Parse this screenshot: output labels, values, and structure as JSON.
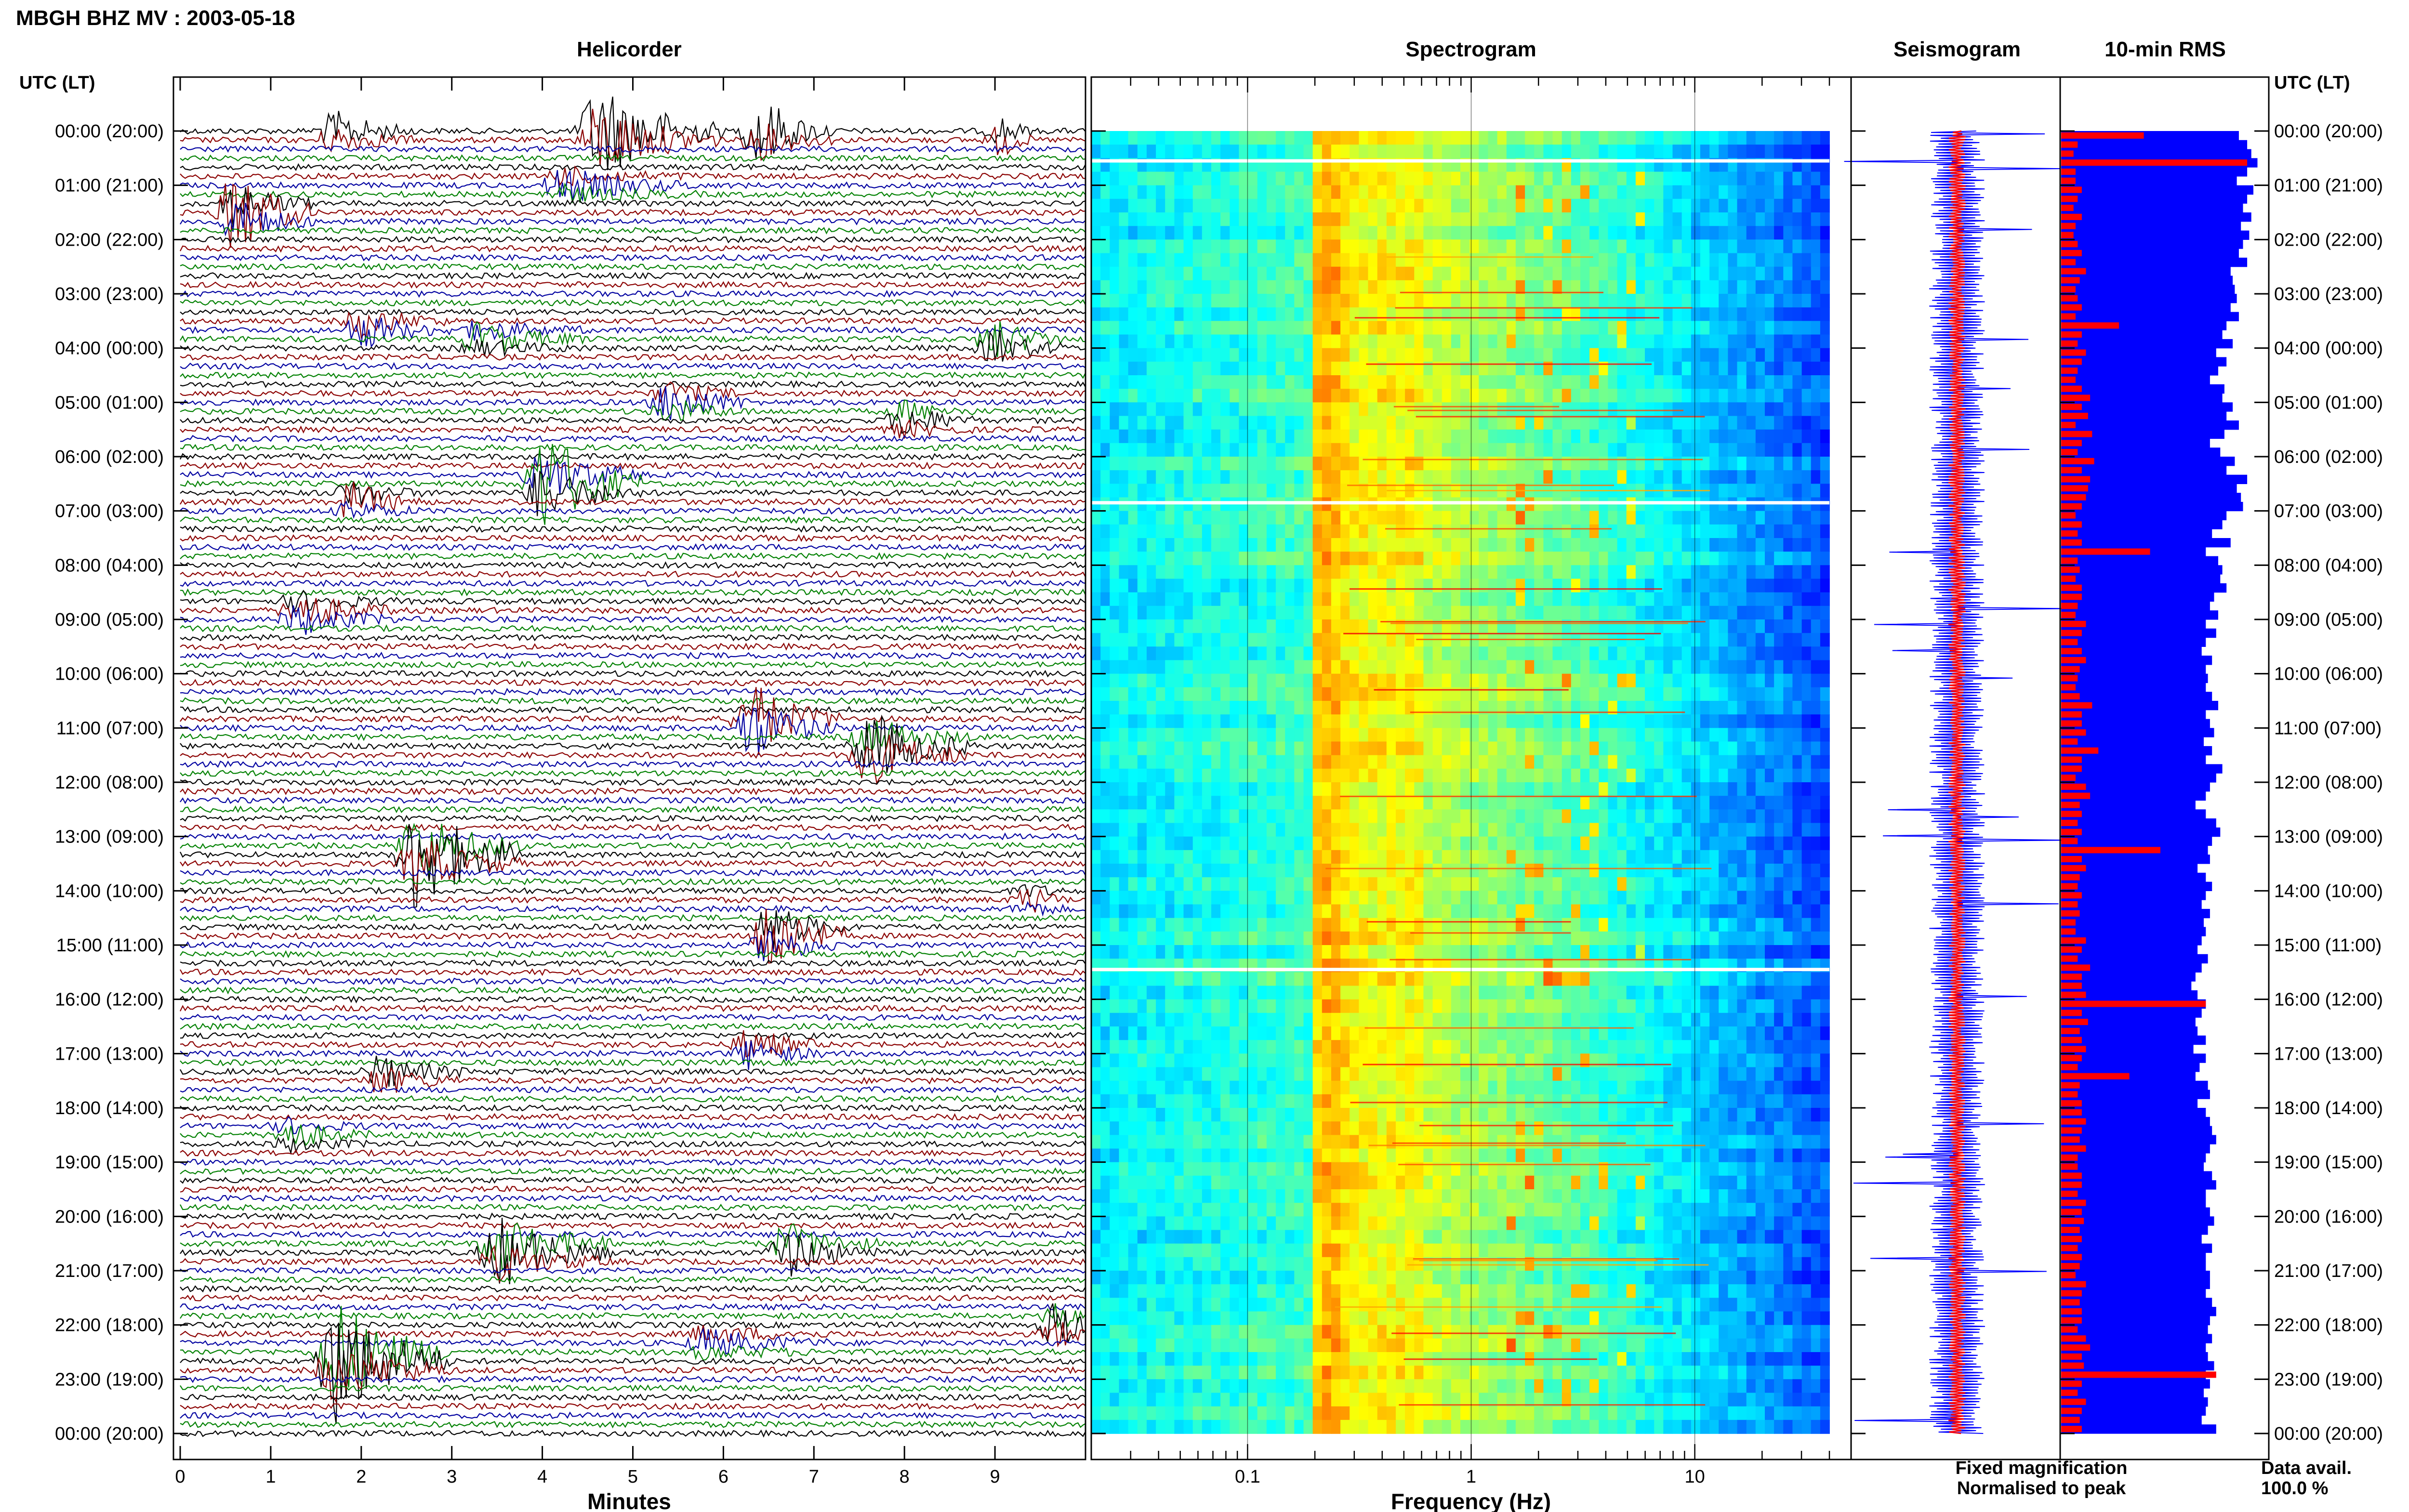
{
  "figure": {
    "title": "MBGH BHZ MV : 2003-05-18",
    "left_axis_label": "UTC (LT)",
    "right_axis_label": "UTC (LT)",
    "panels": {
      "helicorder": "Helicorder",
      "spectrogram": "Spectrogram",
      "seismogram": "Seismogram",
      "rms": "10-min RMS"
    },
    "legend": {
      "fixed": "Fixed magnification",
      "normalised": "Normalised to peak",
      "fixed_color": "#0000ff",
      "normalised_color": "#ff0000"
    },
    "data_avail": {
      "label": "Data avail.",
      "value": "100.0 %"
    }
  },
  "chart_data": [
    {
      "type": "line",
      "panel": "helicorder",
      "xlabel": "Minutes",
      "xlim": [
        0,
        10
      ],
      "xticks": [
        "0",
        "1",
        "2",
        "3",
        "4",
        "5",
        "6",
        "7",
        "8",
        "9"
      ],
      "time_ticks": [
        "00:00 (20:00)",
        "01:00 (21:00)",
        "02:00 (22:00)",
        "03:00 (23:00)",
        "04:00 (00:00)",
        "05:00 (01:00)",
        "06:00 (02:00)",
        "07:00 (03:00)",
        "08:00 (04:00)",
        "09:00 (05:00)",
        "10:00 (06:00)",
        "11:00 (07:00)",
        "12:00 (08:00)",
        "13:00 (09:00)",
        "14:00 (10:00)",
        "15:00 (11:00)",
        "16:00 (12:00)",
        "17:00 (13:00)",
        "18:00 (14:00)",
        "19:00 (15:00)",
        "20:00 (16:00)",
        "21:00 (17:00)",
        "22:00 (18:00)",
        "23:00 (19:00)",
        "00:00 (20:00)"
      ],
      "trace_colors": [
        "#000000",
        "#8b0000",
        "#0000a0",
        "#008000"
      ],
      "lines_per_hour": 6,
      "events": [
        {
          "minute": 4.6,
          "hour": 0.05,
          "amp": 4.0,
          "dur": 1.4,
          "color": 0
        },
        {
          "minute": 6.4,
          "hour": 0.0,
          "amp": 2.6,
          "dur": 0.8,
          "color": 1
        },
        {
          "minute": 1.7,
          "hour": 0.05,
          "amp": 1.5,
          "dur": 0.9,
          "color": 1
        },
        {
          "minute": 9.1,
          "hour": 0.1,
          "amp": 1.5,
          "dur": 0.3,
          "color": 1
        },
        {
          "minute": 0.6,
          "hour": 1.5,
          "amp": 3.2,
          "dur": 0.9,
          "color": 3
        },
        {
          "minute": 4.2,
          "hour": 1.0,
          "amp": 1.2,
          "dur": 1.5,
          "color": 3
        },
        {
          "minute": 2.0,
          "hour": 3.6,
          "amp": 1.5,
          "dur": 1.0,
          "color": 0
        },
        {
          "minute": 3.3,
          "hour": 3.8,
          "amp": 1.2,
          "dur": 1.2,
          "color": 1
        },
        {
          "minute": 9.0,
          "hour": 3.9,
          "amp": 1.8,
          "dur": 0.8,
          "color": 2
        },
        {
          "minute": 5.4,
          "hour": 5.0,
          "amp": 1.6,
          "dur": 0.9,
          "color": 0
        },
        {
          "minute": 8.0,
          "hour": 5.3,
          "amp": 1.2,
          "dur": 0.8,
          "color": 2
        },
        {
          "minute": 4.0,
          "hour": 6.5,
          "amp": 4.0,
          "dur": 1.1,
          "color": 0
        },
        {
          "minute": 1.9,
          "hour": 6.8,
          "amp": 1.5,
          "dur": 0.8,
          "color": 3
        },
        {
          "minute": 1.3,
          "hour": 8.9,
          "amp": 1.6,
          "dur": 1.1,
          "color": 1
        },
        {
          "minute": 6.3,
          "hour": 10.9,
          "amp": 3.2,
          "dur": 1.0,
          "color": 0
        },
        {
          "minute": 7.6,
          "hour": 11.4,
          "amp": 3.0,
          "dur": 1.2,
          "color": 2
        },
        {
          "minute": 2.6,
          "hour": 13.3,
          "amp": 4.5,
          "dur": 1.2,
          "color": 2
        },
        {
          "minute": 6.5,
          "hour": 14.8,
          "amp": 3.0,
          "dur": 0.9,
          "color": 2
        },
        {
          "minute": 9.4,
          "hour": 14.2,
          "amp": 1.0,
          "dur": 0.4,
          "color": 3
        },
        {
          "minute": 6.3,
          "hour": 16.9,
          "amp": 1.5,
          "dur": 0.8,
          "color": 0
        },
        {
          "minute": 2.2,
          "hour": 17.4,
          "amp": 1.4,
          "dur": 1.0,
          "color": 1
        },
        {
          "minute": 1.2,
          "hour": 18.5,
          "amp": 1.0,
          "dur": 0.9,
          "color": 0
        },
        {
          "minute": 3.5,
          "hour": 20.6,
          "amp": 3.0,
          "dur": 1.3,
          "color": 0
        },
        {
          "minute": 6.7,
          "hour": 20.6,
          "amp": 2.0,
          "dur": 1.0,
          "color": 3
        },
        {
          "minute": 1.7,
          "hour": 22.6,
          "amp": 5.5,
          "dur": 1.3,
          "color": 3
        },
        {
          "minute": 9.7,
          "hour": 22.0,
          "amp": 2.0,
          "dur": 0.4,
          "color": 1
        },
        {
          "minute": 5.8,
          "hour": 22.3,
          "amp": 1.0,
          "dur": 1.4,
          "color": 0
        }
      ]
    },
    {
      "type": "heatmap",
      "panel": "spectrogram",
      "xlabel": "Frequency (Hz)",
      "xscale": "log",
      "xlim": [
        0.02,
        50
      ],
      "xticks": [
        "0.1",
        "1",
        "10"
      ],
      "data_max_hz": 40,
      "gap_hours": [
        0.55,
        6.85,
        15.45
      ],
      "narrowband_hz": 3.0,
      "colormap": "jet"
    },
    {
      "type": "line",
      "panel": "seismogram",
      "legend": [
        "Fixed magnification",
        "Normalised to peak"
      ],
      "colors": [
        "#0000ff",
        "#ff0000"
      ]
    },
    {
      "type": "bar",
      "panel": "rms",
      "orientation": "horizontal",
      "interval_minutes": 10,
      "series": [
        {
          "name": "Fixed magnification",
          "color": "#0000ff"
        },
        {
          "name": "Normalised to peak",
          "color": "#ff0000"
        }
      ],
      "fixed_level": [
        0.86,
        0.9,
        0.92,
        0.95,
        0.9,
        0.85,
        0.93,
        0.9,
        0.88,
        0.92,
        0.87,
        0.91,
        0.88,
        0.86,
        0.9,
        0.82,
        0.83,
        0.84,
        0.85,
        0.82,
        0.86,
        0.8,
        0.78,
        0.83,
        0.75,
        0.8,
        0.76,
        0.72,
        0.79,
        0.78,
        0.83,
        0.8,
        0.86,
        0.79,
        0.72,
        0.77,
        0.84,
        0.8,
        0.9,
        0.85,
        0.87,
        0.88,
        0.8,
        0.78,
        0.73,
        0.82,
        0.7,
        0.76,
        0.78,
        0.77,
        0.8,
        0.74,
        0.72,
        0.76,
        0.7,
        0.75,
        0.7,
        0.68,
        0.73,
        0.7,
        0.71,
        0.7,
        0.73,
        0.76,
        0.7,
        0.72,
        0.74,
        0.69,
        0.73,
        0.7,
        0.78,
        0.75,
        0.72,
        0.7,
        0.65,
        0.7,
        0.75,
        0.77,
        0.73,
        0.71,
        0.72,
        0.66,
        0.7,
        0.73,
        0.7,
        0.68,
        0.72,
        0.69,
        0.7,
        0.68,
        0.66,
        0.71,
        0.68,
        0.65,
        0.63,
        0.66,
        0.7,
        0.68,
        0.65,
        0.66,
        0.7,
        0.64,
        0.7,
        0.67,
        0.65,
        0.71,
        0.72,
        0.66,
        0.7,
        0.72,
        0.73,
        0.75,
        0.72,
        0.7,
        0.69,
        0.73,
        0.75,
        0.7,
        0.7,
        0.72,
        0.74,
        0.71,
        0.68,
        0.73,
        0.7,
        0.7,
        0.72,
        0.72,
        0.7,
        0.73,
        0.75,
        0.72,
        0.71,
        0.73,
        0.7,
        0.71,
        0.74,
        0.7,
        0.72,
        0.69,
        0.71,
        0.7,
        0.68,
        0.75
      ],
      "normalised_peak": [
        0.4,
        0.08,
        0.06,
        0.9,
        0.07,
        0.07,
        0.1,
        0.08,
        0.06,
        0.1,
        0.07,
        0.06,
        0.08,
        0.1,
        0.07,
        0.12,
        0.09,
        0.07,
        0.08,
        0.1,
        0.07,
        0.28,
        0.1,
        0.08,
        0.12,
        0.1,
        0.08,
        0.07,
        0.1,
        0.14,
        0.1,
        0.13,
        0.07,
        0.15,
        0.1,
        0.08,
        0.16,
        0.1,
        0.14,
        0.13,
        0.12,
        0.1,
        0.07,
        0.1,
        0.08,
        0.1,
        0.43,
        0.08,
        0.09,
        0.07,
        0.1,
        0.1,
        0.08,
        0.07,
        0.12,
        0.1,
        0.08,
        0.1,
        0.12,
        0.09,
        0.08,
        0.07,
        0.09,
        0.15,
        0.1,
        0.1,
        0.12,
        0.08,
        0.18,
        0.1,
        0.1,
        0.07,
        0.12,
        0.14,
        0.09,
        0.1,
        0.08,
        0.1,
        0.08,
        0.48,
        0.1,
        0.12,
        0.09,
        0.08,
        0.1,
        0.08,
        0.09,
        0.07,
        0.07,
        0.12,
        0.1,
        0.08,
        0.14,
        0.1,
        0.1,
        0.12,
        0.7,
        0.1,
        0.13,
        0.09,
        0.1,
        0.12,
        0.1,
        0.08,
        0.33,
        0.09,
        0.08,
        0.1,
        0.1,
        0.12,
        0.1,
        0.09,
        0.12,
        0.08,
        0.08,
        0.1,
        0.1,
        0.08,
        0.12,
        0.1,
        0.11,
        0.09,
        0.1,
        0.08,
        0.1,
        0.09,
        0.07,
        0.12,
        0.1,
        0.09,
        0.1,
        0.1,
        0.08,
        0.12,
        0.14,
        0.1,
        0.11,
        0.75,
        0.1,
        0.08,
        0.12,
        0.1,
        0.09,
        0.1
      ]
    }
  ]
}
